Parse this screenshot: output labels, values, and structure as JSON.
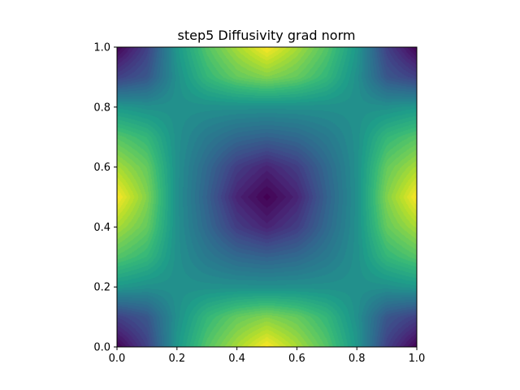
{
  "chart_data": {
    "type": "heatmap",
    "title": "step5 Diffusivity grad norm",
    "xlabel": "",
    "ylabel": "",
    "xlim": [
      0.0,
      1.0
    ],
    "ylim": [
      0.0,
      1.0
    ],
    "x_ticks": [
      "0.0",
      "0.2",
      "0.4",
      "0.6",
      "0.8",
      "1.0"
    ],
    "y_ticks": [
      "0.0",
      "0.2",
      "0.4",
      "0.6",
      "0.8",
      "1.0"
    ],
    "x_tick_values": [
      0.0,
      0.2,
      0.4,
      0.6,
      0.8,
      1.0
    ],
    "y_tick_values": [
      0.0,
      0.2,
      0.4,
      0.6,
      0.8,
      1.0
    ],
    "colormap": "viridis",
    "grid": false,
    "grid_resolution": 11,
    "values": [
      [
        0.0,
        0.19,
        0.53,
        0.73,
        0.87,
        1.0,
        0.87,
        0.73,
        0.53,
        0.19,
        0.0
      ],
      [
        0.19,
        0.27,
        0.5,
        0.66,
        0.76,
        0.81,
        0.76,
        0.66,
        0.5,
        0.27,
        0.19
      ],
      [
        0.53,
        0.5,
        0.5,
        0.5,
        0.5,
        0.5,
        0.5,
        0.5,
        0.5,
        0.5,
        0.53
      ],
      [
        0.73,
        0.66,
        0.5,
        0.41,
        0.34,
        0.31,
        0.34,
        0.41,
        0.5,
        0.66,
        0.73
      ],
      [
        0.87,
        0.76,
        0.5,
        0.34,
        0.18,
        0.1,
        0.18,
        0.34,
        0.5,
        0.76,
        0.87
      ],
      [
        1.0,
        0.81,
        0.5,
        0.31,
        0.1,
        0.0,
        0.1,
        0.31,
        0.5,
        0.81,
        1.0
      ],
      [
        0.87,
        0.76,
        0.5,
        0.34,
        0.18,
        0.1,
        0.18,
        0.34,
        0.5,
        0.76,
        0.87
      ],
      [
        0.73,
        0.66,
        0.5,
        0.41,
        0.34,
        0.31,
        0.34,
        0.41,
        0.5,
        0.66,
        0.73
      ],
      [
        0.53,
        0.5,
        0.5,
        0.5,
        0.5,
        0.5,
        0.5,
        0.5,
        0.5,
        0.5,
        0.53
      ],
      [
        0.19,
        0.27,
        0.5,
        0.66,
        0.76,
        0.81,
        0.76,
        0.66,
        0.5,
        0.27,
        0.19
      ],
      [
        0.0,
        0.19,
        0.53,
        0.73,
        0.87,
        1.0,
        0.87,
        0.73,
        0.53,
        0.19,
        0.0
      ]
    ]
  }
}
